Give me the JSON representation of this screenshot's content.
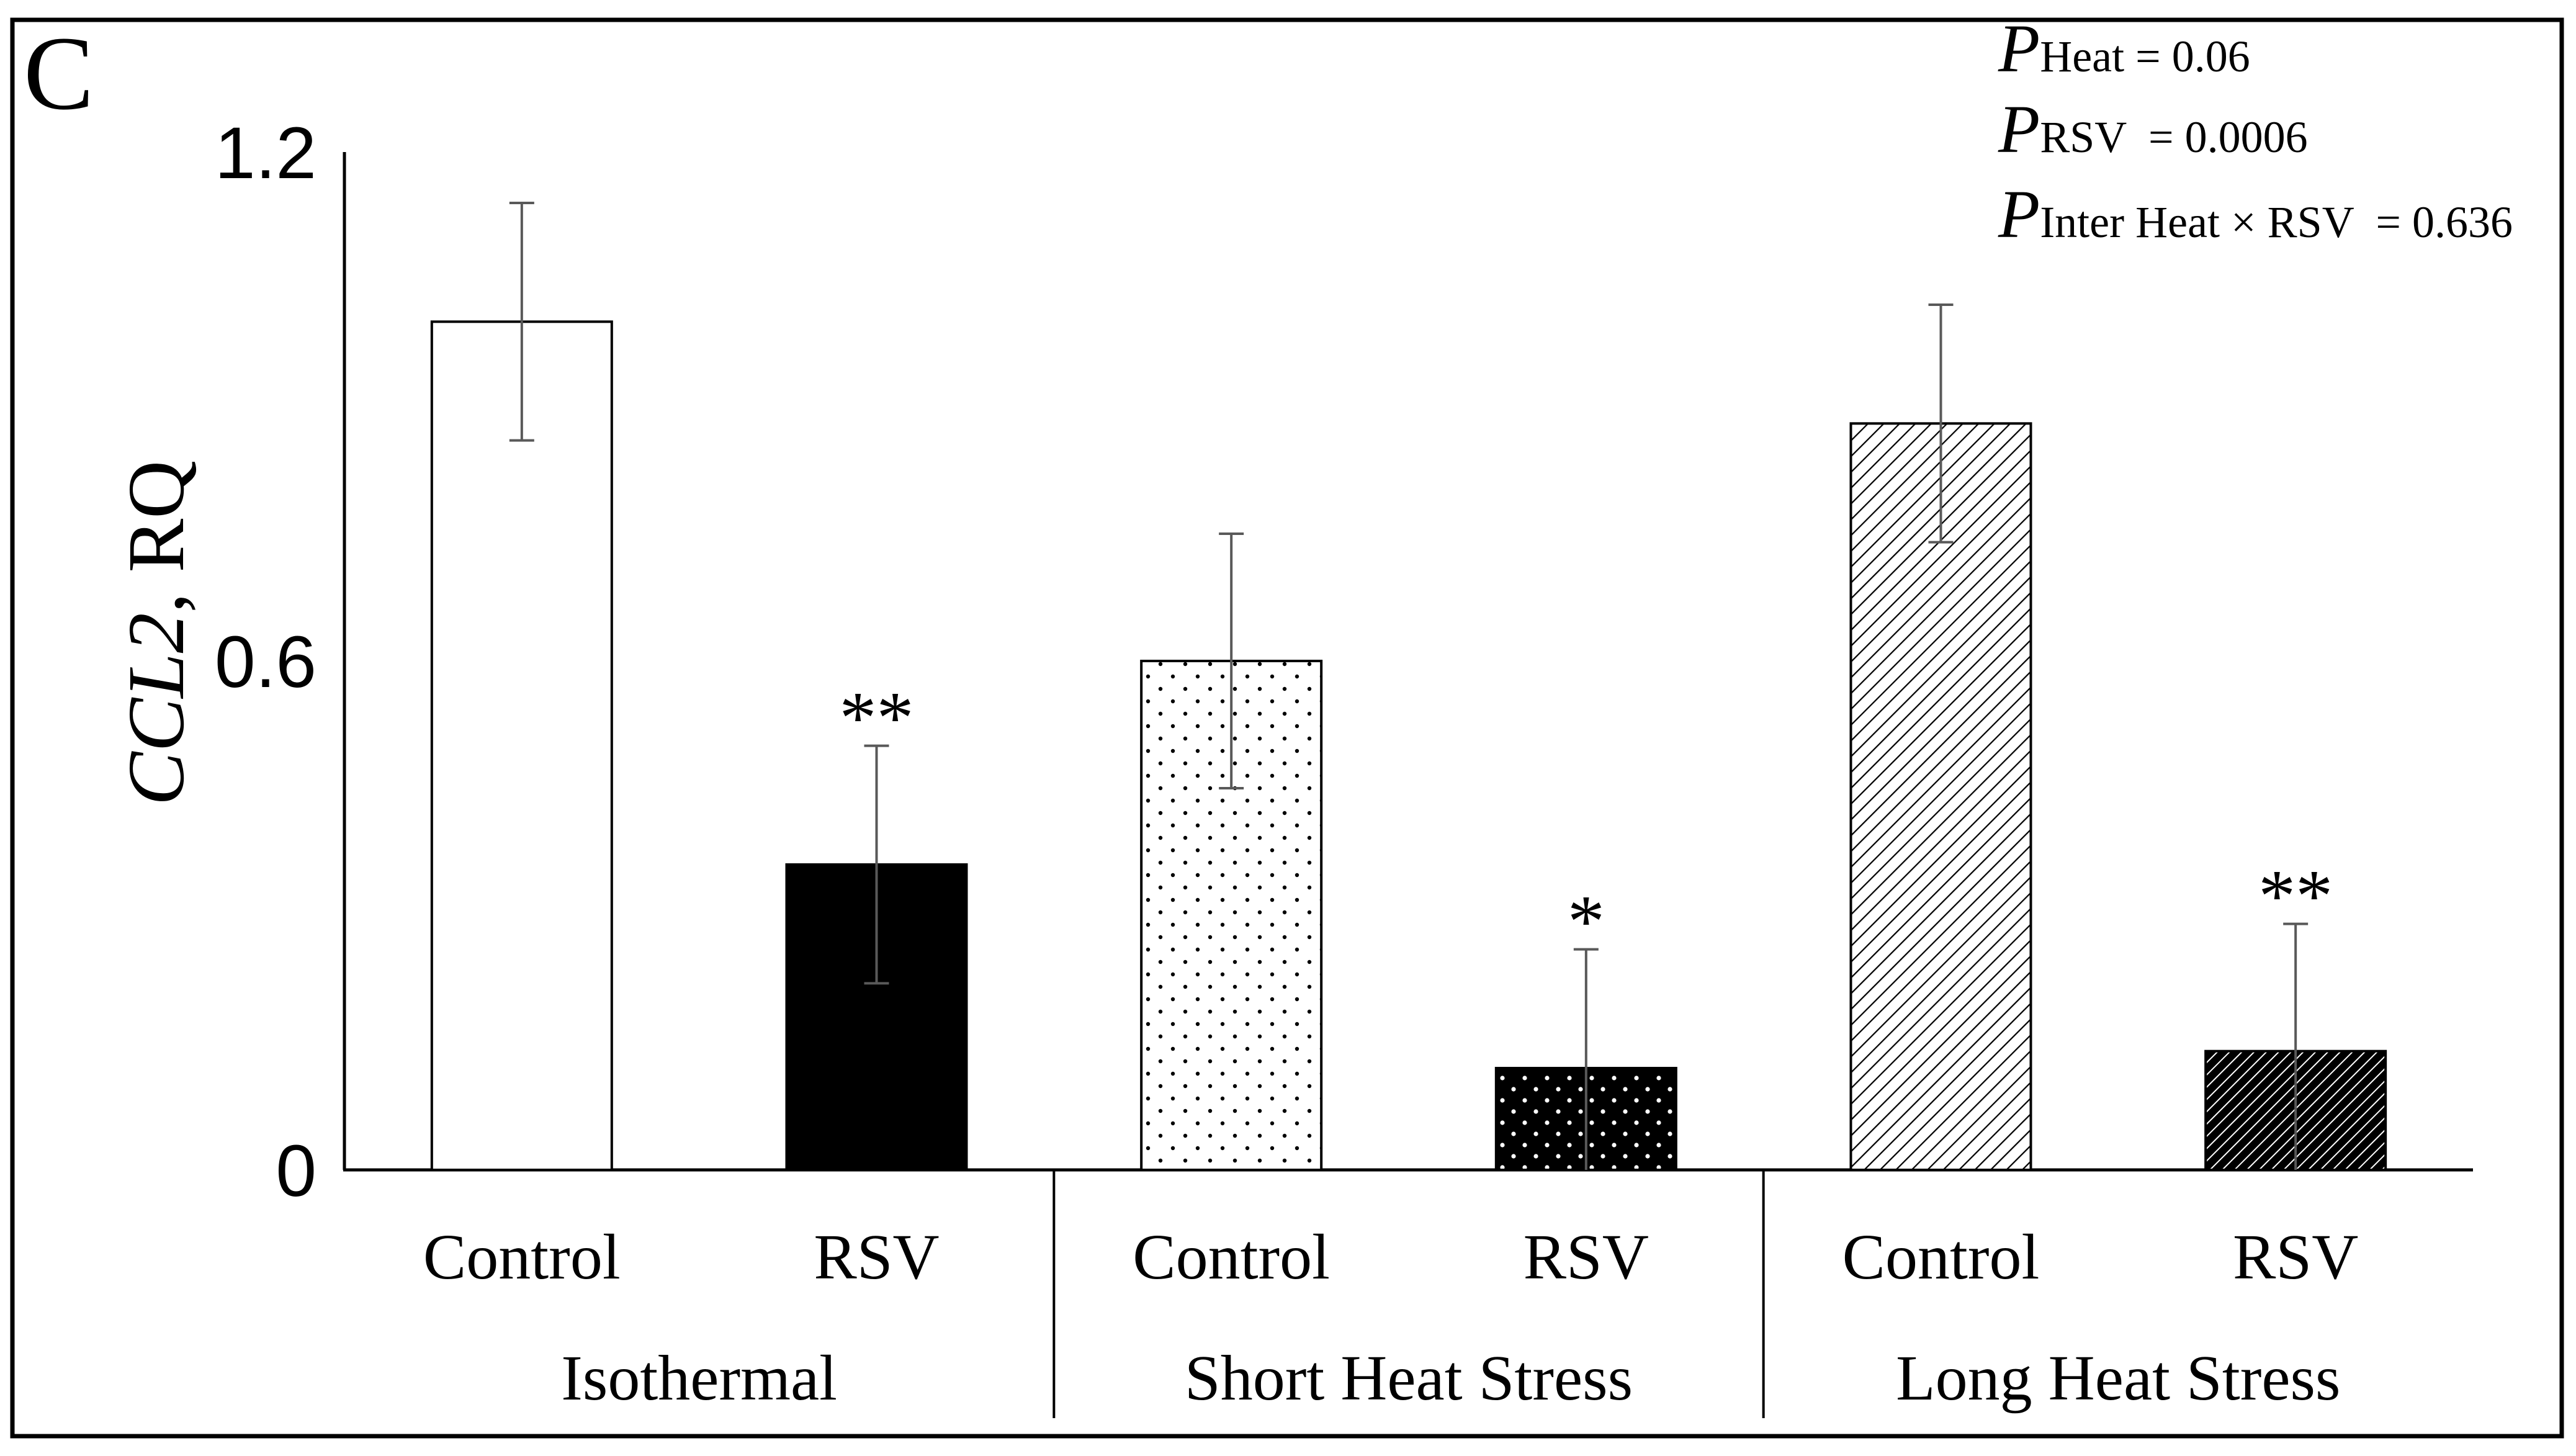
{
  "panel_label": "C",
  "stats": {
    "heat": {
      "p": "P",
      "sub": "Heat",
      "value": " = 0.06"
    },
    "rsv": {
      "p": "P",
      "sub": "RSV",
      "value": "  = 0.0006"
    },
    "inter": {
      "p": "P",
      "sub": "Inter Heat × RSV",
      "value": "  = 0.636"
    }
  },
  "axis": {
    "ylabel_italic": "CCL2",
    "ylabel_rest": ", RQ"
  },
  "colors": {
    "bar_edge": "#000000",
    "bar_fill_light": "#ffffff",
    "bar_fill_dark": "#000000",
    "error_bar": "#595959",
    "axis": "#000000"
  },
  "chart_data": {
    "type": "bar",
    "title": "",
    "xlabel": "",
    "ylabel": "CCL2, RQ",
    "ylim": [
      0,
      1.2
    ],
    "yticks": [
      0,
      0.6,
      1.2
    ],
    "ytick_labels": [
      "0",
      "0.6",
      "1.2"
    ],
    "grid": false,
    "groups": [
      "Isothermal",
      "Short Heat Stress",
      "Long Heat Stress"
    ],
    "categories": [
      "Control",
      "RSV",
      "Control",
      "RSV",
      "Control",
      "RSV"
    ],
    "values": [
      1.0,
      0.36,
      0.6,
      0.12,
      0.88,
      0.14
    ],
    "errors": [
      0.14,
      0.14,
      0.15,
      0.14,
      0.14,
      0.15
    ],
    "significance": [
      "",
      "**",
      "",
      "*",
      "",
      "**"
    ],
    "patterns": [
      "solid-white",
      "solid-black",
      "dots-light",
      "dots-dark",
      "hatch-light",
      "hatch-dark"
    ]
  }
}
